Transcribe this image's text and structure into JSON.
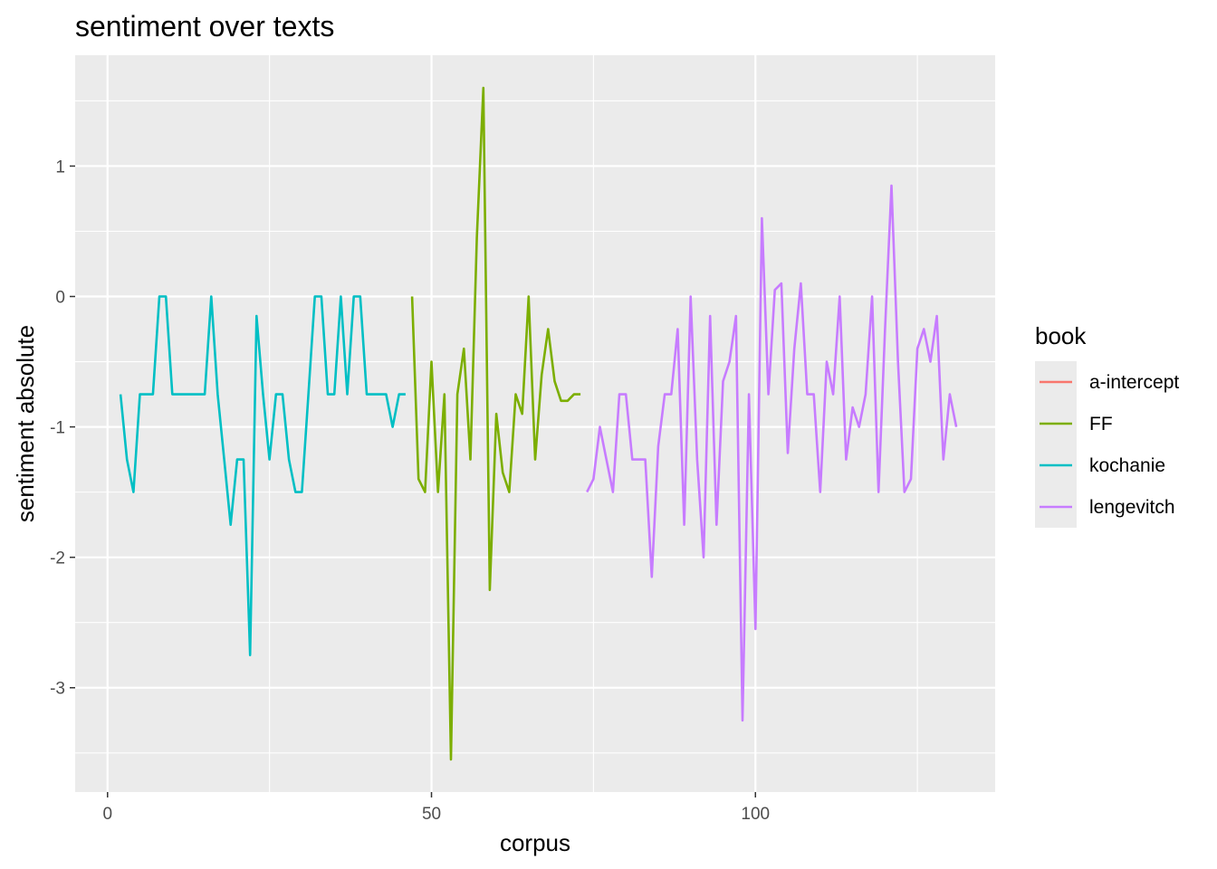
{
  "chart_data": {
    "type": "line",
    "title": "sentiment over texts",
    "xlabel": "corpus",
    "ylabel": "sentiment absolute",
    "xlim": [
      -5,
      137
    ],
    "ylim": [
      -3.8,
      1.85
    ],
    "x_ticks": [
      0,
      50,
      100
    ],
    "x_tick_labels": [
      "0",
      "50",
      "100"
    ],
    "y_ticks": [
      1,
      0,
      -1,
      -2,
      -3
    ],
    "y_tick_labels": [
      "1",
      "0",
      "-1",
      "-2",
      "-3"
    ],
    "grid": true,
    "legend": {
      "title": "book",
      "position": "right",
      "entries": [
        "a-intercept",
        "FF",
        "kochanie",
        "lengevitch"
      ]
    },
    "series": [
      {
        "name": "a-intercept",
        "color": "#F8766D",
        "x": [],
        "y": []
      },
      {
        "name": "FF",
        "color": "#7CAE00",
        "x": [
          47,
          48,
          49,
          50,
          51,
          52,
          53,
          54,
          55,
          56,
          57,
          58,
          59,
          60,
          61,
          62,
          63,
          64,
          65,
          66,
          67,
          68,
          69,
          70,
          71,
          72,
          73
        ],
        "y": [
          0,
          -1.4,
          -1.5,
          -0.5,
          -1.5,
          -0.75,
          -3.55,
          -0.75,
          -0.4,
          -1.25,
          0.45,
          1.6,
          -2.25,
          -0.9,
          -1.35,
          -1.5,
          -0.75,
          -0.9,
          0,
          -1.25,
          -0.6,
          -0.25,
          -0.65,
          -0.8,
          -0.8,
          -0.75,
          -0.75
        ]
      },
      {
        "name": "kochanie",
        "color": "#00BFC4",
        "x": [
          2,
          3,
          4,
          5,
          6,
          7,
          8,
          9,
          10,
          11,
          12,
          13,
          14,
          15,
          16,
          17,
          18,
          19,
          20,
          21,
          22,
          23,
          24,
          25,
          26,
          27,
          28,
          29,
          30,
          31,
          32,
          33,
          34,
          35,
          36,
          37,
          38,
          39,
          40,
          41,
          42,
          43,
          44,
          45,
          46
        ],
        "y": [
          -0.75,
          -1.25,
          -1.5,
          -0.75,
          -0.75,
          -0.75,
          0,
          0,
          -0.75,
          -0.75,
          -0.75,
          -0.75,
          -0.75,
          -0.75,
          0,
          -0.75,
          -1.25,
          -1.75,
          -1.25,
          -1.25,
          -2.75,
          -0.15,
          -0.75,
          -1.25,
          -0.75,
          -0.75,
          -1.25,
          -1.5,
          -1.5,
          -0.75,
          0,
          0,
          -0.75,
          -0.75,
          0,
          -0.75,
          0,
          0,
          -0.75,
          -0.75,
          -0.75,
          -0.75,
          -1,
          -0.75,
          -0.75
        ]
      },
      {
        "name": "lengevitch",
        "color": "#C77CFF",
        "x": [
          74,
          75,
          76,
          77,
          78,
          79,
          80,
          81,
          82,
          83,
          84,
          85,
          86,
          87,
          88,
          89,
          90,
          91,
          92,
          93,
          94,
          95,
          96,
          97,
          98,
          99,
          100,
          101,
          102,
          103,
          104,
          105,
          106,
          107,
          108,
          109,
          110,
          111,
          112,
          113,
          114,
          115,
          116,
          117,
          118,
          119,
          120,
          121,
          122,
          123,
          124,
          125,
          126,
          127,
          128,
          129,
          130,
          131
        ],
        "y": [
          -1.5,
          -1.4,
          -1,
          -1.25,
          -1.5,
          -0.75,
          -0.75,
          -1.25,
          -1.25,
          -1.25,
          -2.15,
          -1.15,
          -0.75,
          -0.75,
          -0.25,
          -1.75,
          0,
          -1.25,
          -2,
          -0.15,
          -1.75,
          -0.65,
          -0.5,
          -0.15,
          -3.25,
          -0.75,
          -2.55,
          0.6,
          -0.75,
          0.05,
          0.1,
          -1.2,
          -0.4,
          0.1,
          -0.75,
          -0.75,
          -1.5,
          -0.5,
          -0.75,
          0,
          -1.25,
          -0.85,
          -1,
          -0.75,
          0,
          -1.5,
          -0.25,
          0.85,
          -0.5,
          -1.5,
          -1.4,
          -0.4,
          -0.25,
          -0.5,
          -0.15,
          -1.25,
          -0.75,
          -1
        ]
      }
    ]
  }
}
